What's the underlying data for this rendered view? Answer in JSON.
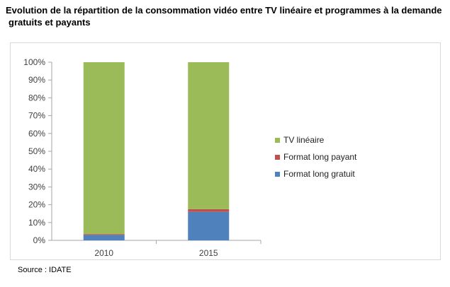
{
  "title_line1": "Evolution de la répartition de la consommation vidéo entre TV linéaire et programmes à la demande",
  "title_line2": "gratuits et payants",
  "source": "Source : IDATE",
  "chart_data": {
    "type": "bar",
    "stacked": true,
    "categories": [
      "2010",
      "2015"
    ],
    "series": [
      {
        "name": "Format long gratuit",
        "color": "#4f81bd",
        "values": [
          3,
          16
        ]
      },
      {
        "name": "Format long payant",
        "color": "#c0504d",
        "values": [
          0.5,
          1.5
        ]
      },
      {
        "name": "TV linéaire",
        "color": "#9bbb59",
        "values": [
          96.5,
          82.5
        ]
      }
    ],
    "ylim": [
      0,
      100
    ],
    "yticks": [
      "0%",
      "10%",
      "20%",
      "30%",
      "40%",
      "50%",
      "60%",
      "70%",
      "80%",
      "90%",
      "100%"
    ],
    "legend_position": "right",
    "legend_order": [
      "TV linéaire",
      "Format long payant",
      "Format long gratuit"
    ],
    "grid": false
  }
}
